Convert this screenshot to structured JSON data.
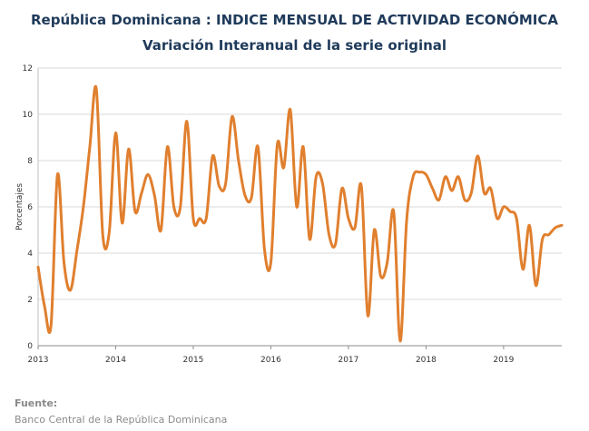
{
  "chart_data": {
    "type": "line",
    "title": "República Dominicana : INDICE MENSUAL DE ACTIVIDAD ECONÓMICA",
    "subtitle": "Variación Interanual de la serie original",
    "ylabel": "Porcentajes",
    "xlabel": "",
    "ylim": [
      0,
      12
    ],
    "yticks": [
      0,
      2,
      4,
      6,
      8,
      10,
      12
    ],
    "xlim": [
      0,
      81
    ],
    "xticks": [
      {
        "x": 0,
        "label": "2013"
      },
      {
        "x": 12,
        "label": "2014"
      },
      {
        "x": 24,
        "label": "2015"
      },
      {
        "x": 36,
        "label": "2016"
      },
      {
        "x": 48,
        "label": "2017"
      },
      {
        "x": 60,
        "label": "2018"
      },
      {
        "x": 72,
        "label": "2019"
      }
    ],
    "grid": true,
    "line_color": "#e07f2e",
    "series": [
      {
        "values": [
          3.4,
          1.7,
          0.9,
          7.4,
          3.6,
          2.4,
          4.1,
          6.0,
          8.6,
          11.1,
          4.8,
          4.9,
          9.2,
          5.3,
          8.5,
          5.8,
          6.6,
          7.4,
          6.5,
          5.0,
          8.6,
          6.0,
          6.0,
          9.7,
          5.5,
          5.5,
          5.5,
          8.2,
          6.9,
          7.0,
          9.9,
          8.0,
          6.5,
          6.4,
          8.6,
          4.2,
          3.6,
          8.7,
          7.7,
          10.2,
          6.0,
          8.6,
          4.6,
          7.3,
          7.0,
          4.8,
          4.4,
          6.8,
          5.5,
          5.1,
          6.9,
          1.3,
          5.0,
          3.0,
          3.6,
          5.8,
          0.2,
          5.4,
          7.3,
          7.5,
          7.4,
          6.8,
          6.3,
          7.3,
          6.7,
          7.3,
          6.3,
          6.6,
          8.2,
          6.6,
          6.8,
          5.5,
          6.0,
          5.8,
          5.5,
          3.3,
          5.2,
          2.6,
          4.6,
          4.8,
          5.1,
          5.2
        ]
      }
    ]
  },
  "source": {
    "label": "Fuente:",
    "text": "Banco Central de la República Dominicana"
  }
}
